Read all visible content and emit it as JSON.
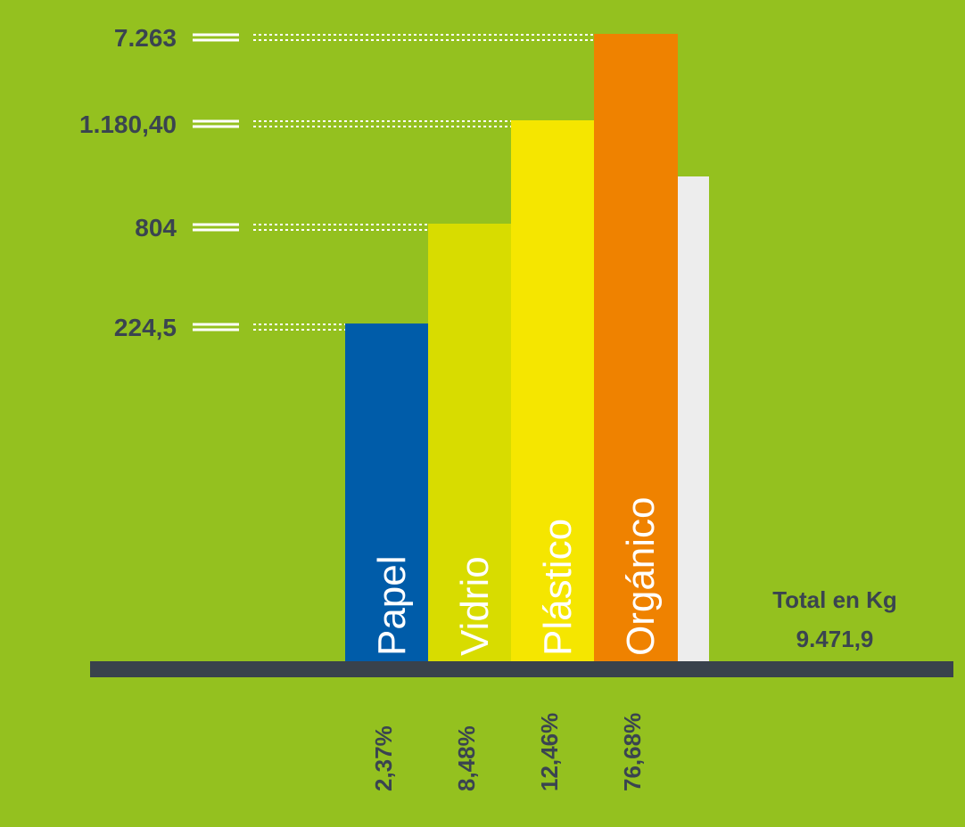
{
  "chart_data": {
    "type": "bar",
    "categories": [
      "Papel",
      "Vidrio",
      "Plástico",
      "Orgánico"
    ],
    "values": [
      224.5,
      804,
      1180.4,
      7263
    ],
    "value_labels": [
      "224,5",
      "804",
      "1.180,40",
      "7.263"
    ],
    "percent_labels": [
      "2,37%",
      "8,48%",
      "12,46%",
      "76,68%"
    ],
    "colors": [
      "#005ca9",
      "#d8dc00",
      "#f5e600",
      "#ef8200"
    ],
    "total": {
      "label": "Total en Kg",
      "value": "9.471,9"
    },
    "extra_bar_color": "#ededed",
    "title": "",
    "xlabel": "",
    "ylabel": "",
    "grid": false,
    "legend": "none"
  }
}
